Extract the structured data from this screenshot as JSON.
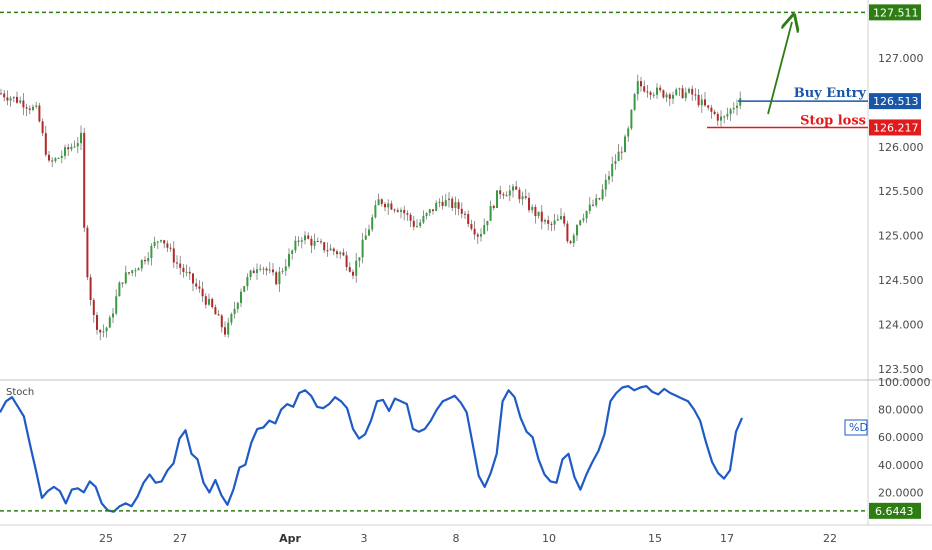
{
  "chart_data": {
    "type": "candlestick",
    "price_panel": {
      "yticks": [
        "127.000",
        "126.000",
        "125.500",
        "125.000",
        "124.500",
        "124.000",
        "123.500"
      ],
      "ylim": [
        123.4,
        127.65
      ],
      "levels": [
        {
          "name": "target",
          "value": 127.511,
          "label": "127.511",
          "color": "#2e7d12",
          "style": "dashed"
        },
        {
          "name": "buy-entry",
          "value": 126.513,
          "label": "126.513",
          "text": "Buy Entry",
          "color": "#1a56a8"
        },
        {
          "name": "stop-loss",
          "value": 126.217,
          "label": "126.217",
          "text": "Stop loss",
          "color": "#e11b1b"
        }
      ],
      "up_color": "#3a9a44",
      "down_color": "#b02a2a",
      "arrow_color": "#2e7d12"
    },
    "stoch_panel": {
      "title": "Stoch",
      "series_label": "%D",
      "yticks": [
        "100.0000",
        "80.0000",
        "60.0000",
        "40.0000",
        "20.0000"
      ],
      "ylim": [
        0,
        100
      ],
      "level": {
        "value": 6.6443,
        "label": "6.6443",
        "color": "#2e7d12"
      },
      "line_color": "#1e5bc6",
      "values": [
        78,
        86,
        89,
        82,
        75,
        55,
        36,
        16,
        21,
        24,
        21,
        12,
        22,
        23,
        20,
        28,
        24,
        12,
        7,
        6,
        10,
        12,
        10,
        17,
        27,
        33,
        27,
        28,
        36,
        41,
        59,
        65,
        48,
        44,
        27,
        20,
        29,
        18,
        11,
        22,
        38,
        40,
        56,
        66,
        67,
        72,
        70,
        80,
        84,
        82,
        92,
        94,
        90,
        82,
        81,
        84,
        89,
        86,
        81,
        66,
        59,
        62,
        72,
        86,
        87,
        79,
        88,
        86,
        84,
        66,
        64,
        66,
        72,
        80,
        86,
        88,
        90,
        85,
        78,
        55,
        32,
        24,
        34,
        48,
        86,
        94,
        89,
        74,
        64,
        60,
        44,
        33,
        28,
        27,
        44,
        48,
        31,
        22,
        33,
        42,
        50,
        62,
        86,
        92,
        96,
        97,
        94,
        96,
        97,
        93,
        91,
        95,
        92,
        90,
        88,
        86,
        80,
        72,
        56,
        42,
        34,
        30,
        36,
        64,
        74
      ]
    },
    "xticks": [
      "25",
      "27",
      "Apr",
      "3",
      "8",
      "10",
      "15",
      "17",
      "22"
    ]
  }
}
